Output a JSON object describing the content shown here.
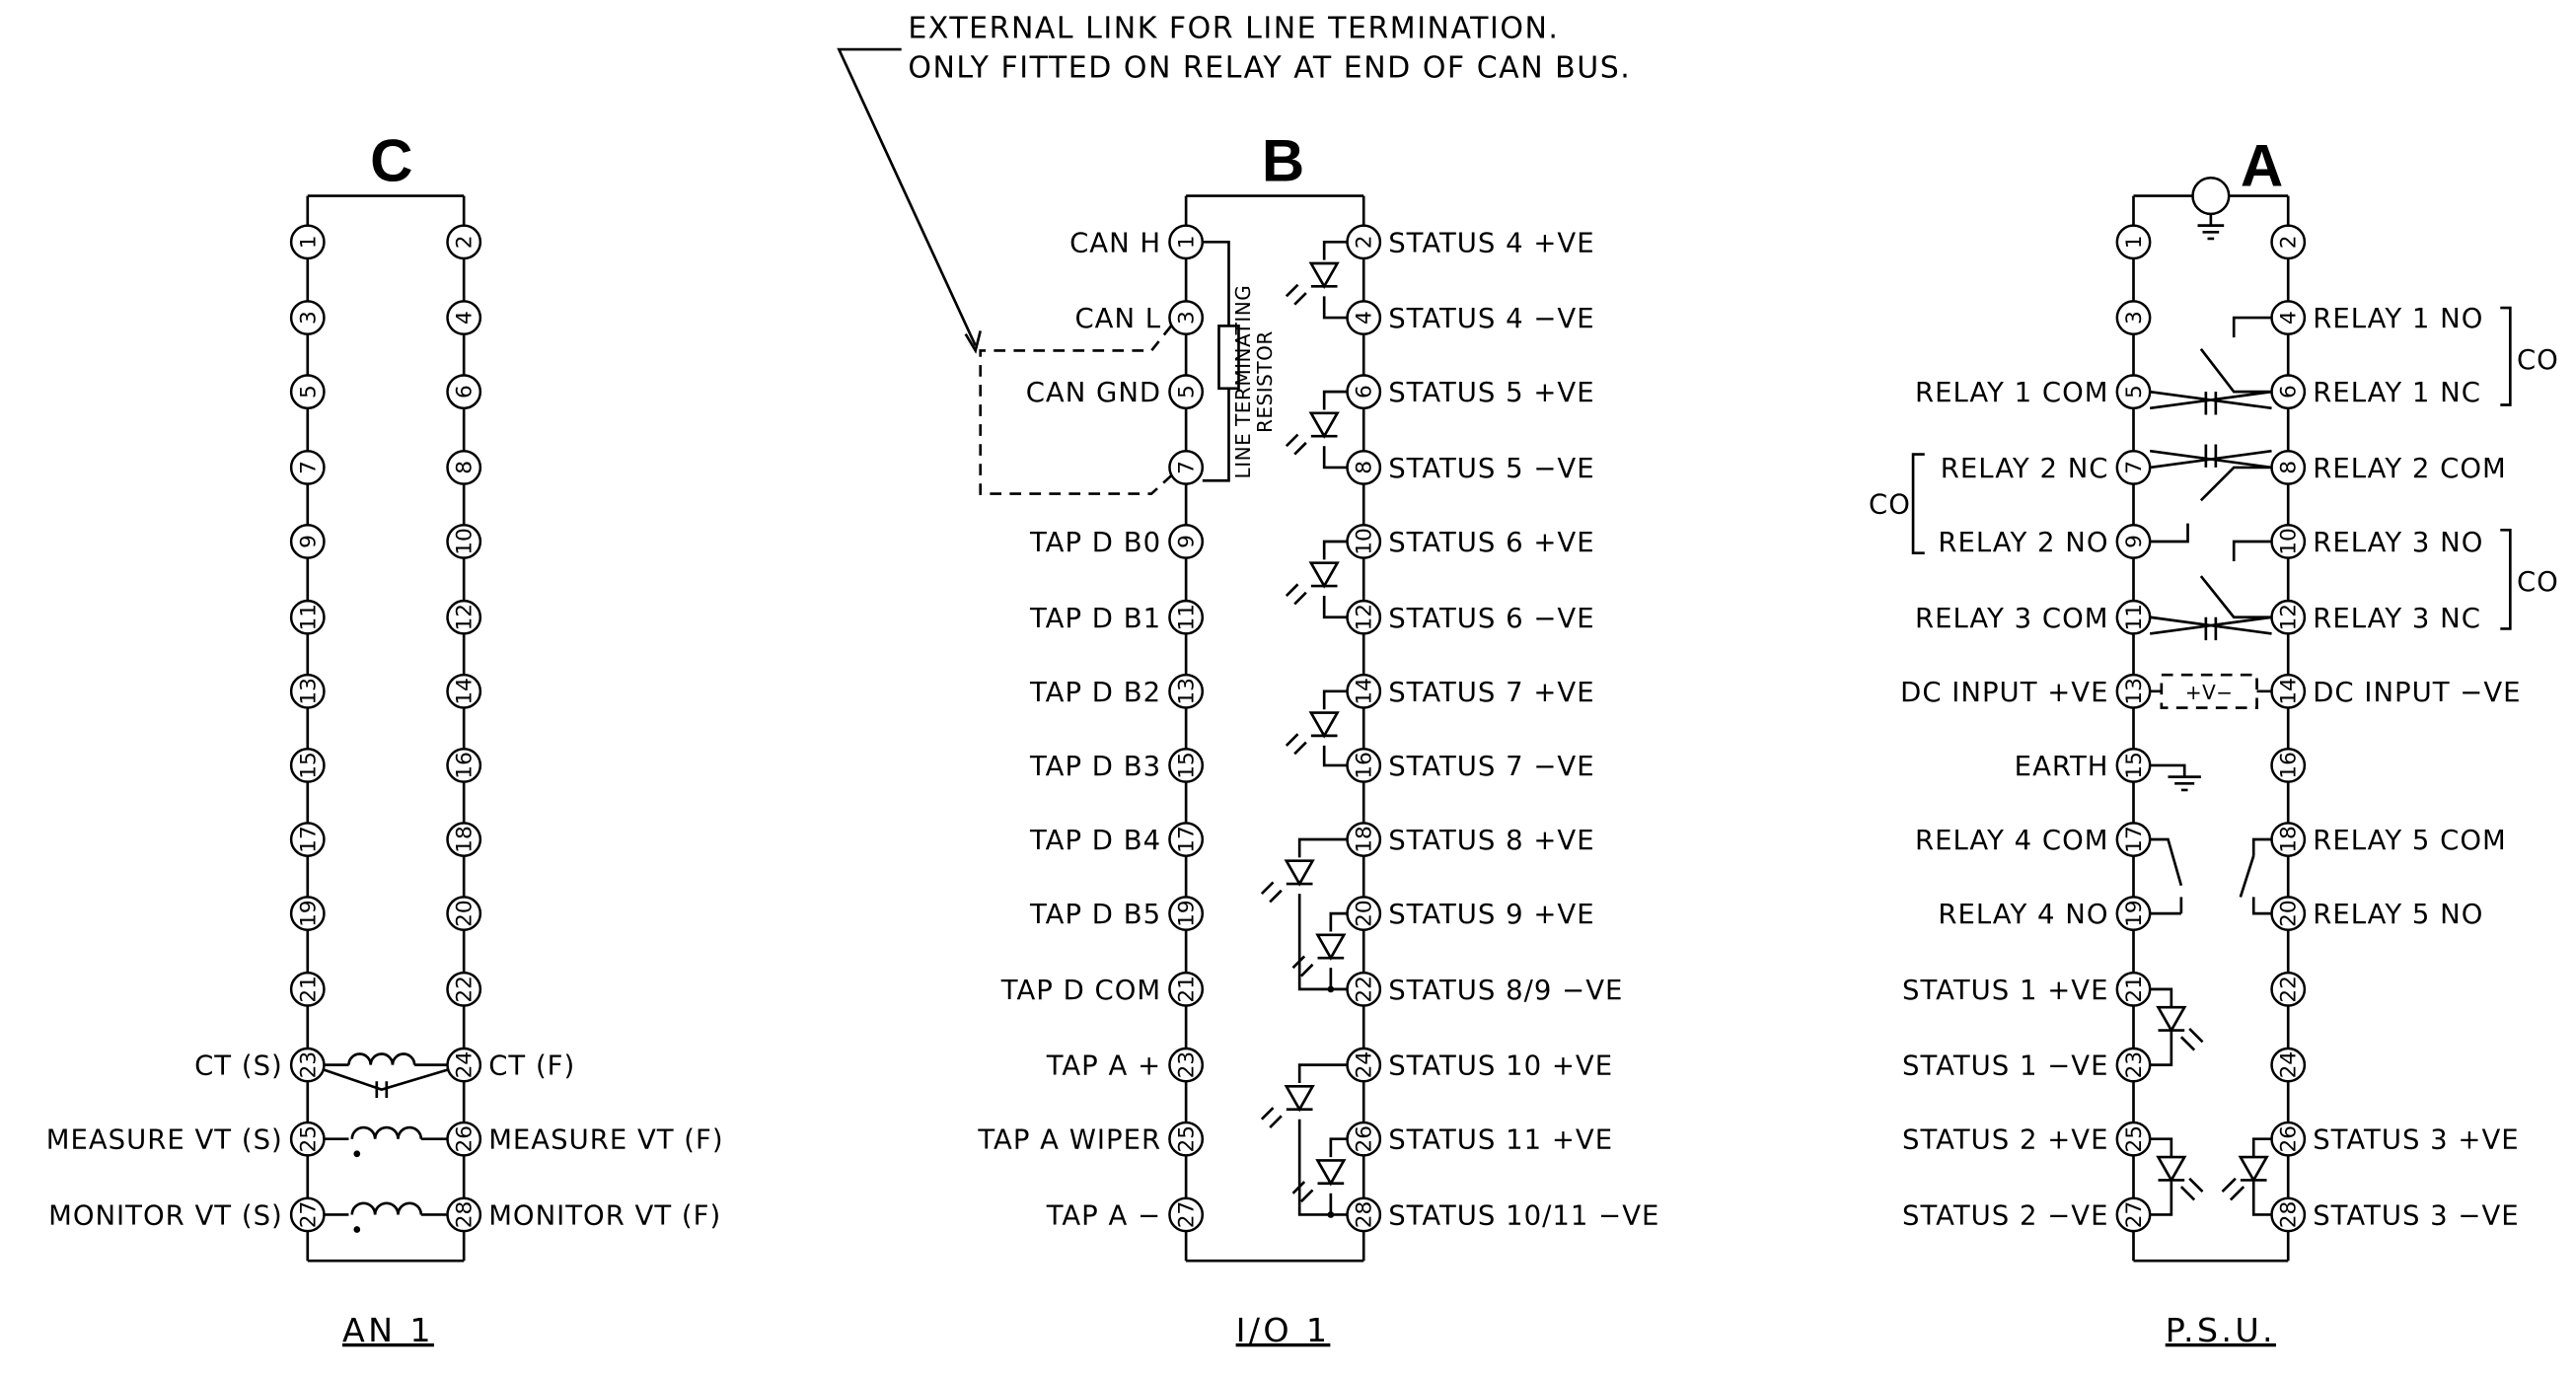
{
  "note": {
    "line1": "EXTERNAL LINK FOR LINE TERMINATION.",
    "line2": "ONLY FITTED ON RELAY AT END OF CAN BUS."
  },
  "blocks": {
    "c": {
      "title": "C",
      "caption": "AN 1",
      "left_pins": [
        {
          "num": "1",
          "label": ""
        },
        {
          "num": "3",
          "label": ""
        },
        {
          "num": "5",
          "label": ""
        },
        {
          "num": "7",
          "label": ""
        },
        {
          "num": "9",
          "label": ""
        },
        {
          "num": "11",
          "label": ""
        },
        {
          "num": "13",
          "label": ""
        },
        {
          "num": "15",
          "label": ""
        },
        {
          "num": "17",
          "label": ""
        },
        {
          "num": "19",
          "label": ""
        },
        {
          "num": "21",
          "label": ""
        },
        {
          "num": "23",
          "label": "CT (S)"
        },
        {
          "num": "25",
          "label": "MEASURE VT (S)"
        },
        {
          "num": "27",
          "label": "MONITOR VT (S)"
        }
      ],
      "right_pins": [
        {
          "num": "2",
          "label": ""
        },
        {
          "num": "4",
          "label": ""
        },
        {
          "num": "6",
          "label": ""
        },
        {
          "num": "8",
          "label": ""
        },
        {
          "num": "10",
          "label": ""
        },
        {
          "num": "12",
          "label": ""
        },
        {
          "num": "14",
          "label": ""
        },
        {
          "num": "16",
          "label": ""
        },
        {
          "num": "18",
          "label": ""
        },
        {
          "num": "20",
          "label": ""
        },
        {
          "num": "22",
          "label": ""
        },
        {
          "num": "24",
          "label": "CT (F)"
        },
        {
          "num": "26",
          "label": "MEASURE VT (F)"
        },
        {
          "num": "28",
          "label": "MONITOR VT (F)"
        }
      ]
    },
    "b": {
      "title": "B",
      "caption": "I/O 1",
      "resistor_label_1": "LINE TERMINATING",
      "resistor_label_2": "RESISTOR",
      "left_pins": [
        {
          "num": "1",
          "label": "CAN H"
        },
        {
          "num": "3",
          "label": "CAN L"
        },
        {
          "num": "5",
          "label": "CAN GND"
        },
        {
          "num": "7",
          "label": ""
        },
        {
          "num": "9",
          "label": "TAP D B0"
        },
        {
          "num": "11",
          "label": "TAP D B1"
        },
        {
          "num": "13",
          "label": "TAP D B2"
        },
        {
          "num": "15",
          "label": "TAP D B3"
        },
        {
          "num": "17",
          "label": "TAP D B4"
        },
        {
          "num": "19",
          "label": "TAP D B5"
        },
        {
          "num": "21",
          "label": "TAP D COM"
        },
        {
          "num": "23",
          "label": "TAP A +"
        },
        {
          "num": "25",
          "label": "TAP A WIPER"
        },
        {
          "num": "27",
          "label": "TAP A −"
        }
      ],
      "right_pins": [
        {
          "num": "2",
          "label": "STATUS 4 +VE"
        },
        {
          "num": "4",
          "label": "STATUS 4 −VE"
        },
        {
          "num": "6",
          "label": "STATUS 5 +VE"
        },
        {
          "num": "8",
          "label": "STATUS 5 −VE"
        },
        {
          "num": "10",
          "label": "STATUS 6 +VE"
        },
        {
          "num": "12",
          "label": "STATUS 6 −VE"
        },
        {
          "num": "14",
          "label": "STATUS 7 +VE"
        },
        {
          "num": "16",
          "label": "STATUS 7 −VE"
        },
        {
          "num": "18",
          "label": "STATUS 8 +VE"
        },
        {
          "num": "20",
          "label": "STATUS 9 +VE"
        },
        {
          "num": "22",
          "label": "STATUS 8/9 −VE"
        },
        {
          "num": "24",
          "label": "STATUS 10 +VE"
        },
        {
          "num": "26",
          "label": "STATUS 11 +VE"
        },
        {
          "num": "28",
          "label": "STATUS 10/11 −VE"
        }
      ]
    },
    "a": {
      "title": "A",
      "caption": "P.S.U.",
      "co_label": "CO",
      "dc_symbol": "+V−",
      "left_pins": [
        {
          "num": "1",
          "label": ""
        },
        {
          "num": "3",
          "label": ""
        },
        {
          "num": "5",
          "label": "RELAY 1 COM"
        },
        {
          "num": "7",
          "label": "RELAY 2 NC"
        },
        {
          "num": "9",
          "label": "RELAY 2 NO"
        },
        {
          "num": "11",
          "label": "RELAY 3 COM"
        },
        {
          "num": "13",
          "label": "DC INPUT +VE"
        },
        {
          "num": "15",
          "label": "EARTH"
        },
        {
          "num": "17",
          "label": "RELAY 4 COM"
        },
        {
          "num": "19",
          "label": "RELAY 4 NO"
        },
        {
          "num": "21",
          "label": "STATUS 1 +VE"
        },
        {
          "num": "23",
          "label": "STATUS 1 −VE"
        },
        {
          "num": "25",
          "label": "STATUS 2 +VE"
        },
        {
          "num": "27",
          "label": "STATUS 2 −VE"
        }
      ],
      "right_pins": [
        {
          "num": "2",
          "label": ""
        },
        {
          "num": "4",
          "label": "RELAY 1 NO"
        },
        {
          "num": "6",
          "label": "RELAY 1 NC"
        },
        {
          "num": "8",
          "label": "RELAY 2 COM"
        },
        {
          "num": "10",
          "label": "RELAY 3 NO"
        },
        {
          "num": "12",
          "label": "RELAY 3 NC"
        },
        {
          "num": "14",
          "label": "DC INPUT −VE"
        },
        {
          "num": "16",
          "label": ""
        },
        {
          "num": "18",
          "label": "RELAY 5 COM"
        },
        {
          "num": "20",
          "label": "RELAY 5 NO"
        },
        {
          "num": "22",
          "label": ""
        },
        {
          "num": "24",
          "label": ""
        },
        {
          "num": "26",
          "label": "STATUS 3 +VE"
        },
        {
          "num": "28",
          "label": "STATUS 3 −VE"
        }
      ]
    }
  }
}
